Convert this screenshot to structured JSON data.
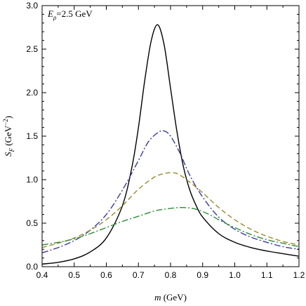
{
  "chart_data": {
    "type": "line",
    "title": "",
    "annotation": {
      "symbol": "E",
      "subscript": "ρ",
      "rest": "=2.5 GeV"
    },
    "xlabel": {
      "symbol": "m",
      "rest": " (GeV)"
    },
    "ylabel": {
      "symbol": "S",
      "subscript": "F",
      "rest": " (GeV",
      "superscript": "−2",
      "close": ")"
    },
    "xlim": [
      0.4,
      1.2
    ],
    "ylim": [
      0.0,
      3.0
    ],
    "xticks": [
      "0.4",
      "0.5",
      "0.6",
      "0.7",
      "0.8",
      "0.9",
      "1.0",
      "1.1",
      "1.2"
    ],
    "yticks": [
      "0.0",
      "0.5",
      "1.0",
      "1.5",
      "2.0",
      "2.5",
      "3.0"
    ],
    "grid": false,
    "legend": "none",
    "series": [
      {
        "color": "#000000",
        "style": "solid",
        "x": [
          0.4,
          0.45,
          0.5,
          0.55,
          0.6,
          0.65,
          0.68,
          0.7,
          0.72,
          0.74,
          0.76,
          0.78,
          0.8,
          0.82,
          0.84,
          0.86,
          0.88,
          0.9,
          0.95,
          1.0,
          1.05,
          1.1,
          1.15,
          1.2
        ],
        "y": [
          0.03,
          0.05,
          0.09,
          0.17,
          0.33,
          0.7,
          1.15,
          1.6,
          2.15,
          2.6,
          2.78,
          2.55,
          2.05,
          1.55,
          1.15,
          0.88,
          0.7,
          0.57,
          0.38,
          0.28,
          0.22,
          0.18,
          0.15,
          0.12
        ]
      },
      {
        "color": "#3a3aa0",
        "style": "dashdot",
        "x": [
          0.4,
          0.45,
          0.5,
          0.55,
          0.6,
          0.65,
          0.7,
          0.73,
          0.76,
          0.78,
          0.8,
          0.83,
          0.86,
          0.9,
          0.95,
          1.0,
          1.05,
          1.1,
          1.15,
          1.2
        ],
        "y": [
          0.16,
          0.22,
          0.3,
          0.42,
          0.6,
          0.88,
          1.22,
          1.43,
          1.54,
          1.56,
          1.5,
          1.3,
          1.05,
          0.8,
          0.57,
          0.43,
          0.34,
          0.28,
          0.23,
          0.2
        ]
      },
      {
        "color": "#9a8a30",
        "style": "dashed",
        "x": [
          0.4,
          0.45,
          0.5,
          0.55,
          0.6,
          0.65,
          0.7,
          0.75,
          0.78,
          0.8,
          0.82,
          0.85,
          0.9,
          0.95,
          1.0,
          1.05,
          1.1,
          1.15,
          1.2
        ],
        "y": [
          0.22,
          0.27,
          0.33,
          0.42,
          0.54,
          0.7,
          0.89,
          1.03,
          1.07,
          1.08,
          1.07,
          1.0,
          0.85,
          0.68,
          0.54,
          0.43,
          0.35,
          0.29,
          0.25
        ]
      },
      {
        "color": "#2e8b3a",
        "style": "dashdot",
        "x": [
          0.4,
          0.45,
          0.5,
          0.55,
          0.6,
          0.65,
          0.7,
          0.75,
          0.8,
          0.84,
          0.88,
          0.92,
          0.96,
          1.0,
          1.05,
          1.1,
          1.15,
          1.2
        ],
        "y": [
          0.25,
          0.28,
          0.32,
          0.38,
          0.45,
          0.52,
          0.58,
          0.64,
          0.67,
          0.68,
          0.66,
          0.6,
          0.52,
          0.45,
          0.37,
          0.31,
          0.27,
          0.23
        ]
      }
    ]
  }
}
